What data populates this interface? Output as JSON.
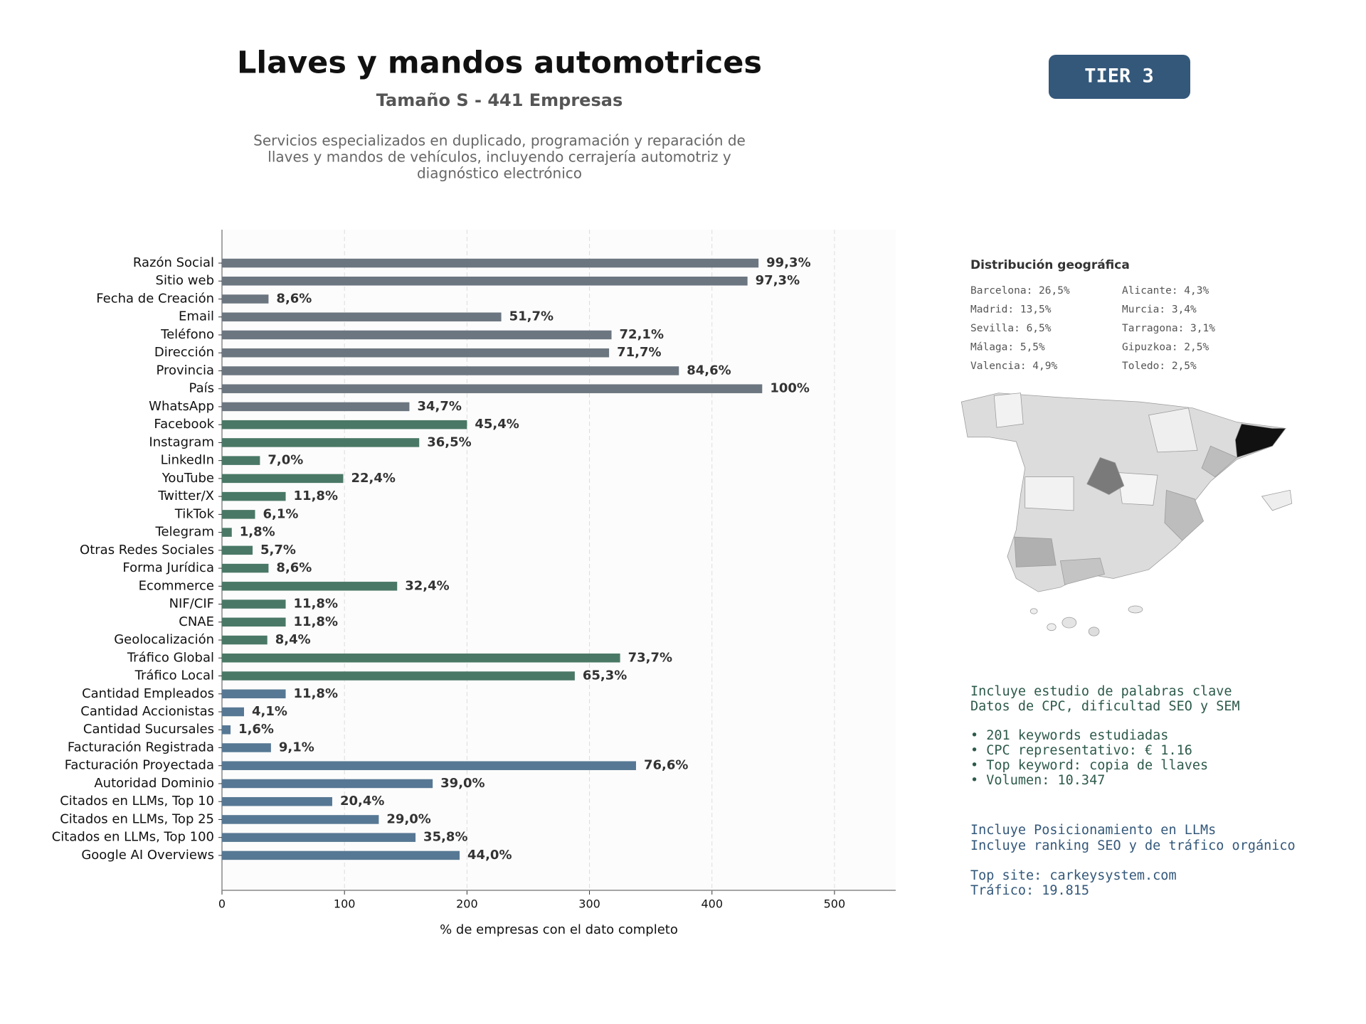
{
  "header": {
    "title": "Llaves y mandos automotrices",
    "subtitle": "Tamaño S - 441 Empresas",
    "description": [
      "Servicios especializados en duplicado, programación y reparación de",
      "llaves y mandos de vehículos, incluyendo cerrajería automotriz y",
      "diagnóstico electrónico"
    ]
  },
  "tier": "TIER 3",
  "geo": {
    "title": "Distribución geográfica",
    "left": [
      "Barcelona: 26,5%",
      "Madrid: 13,5%",
      "Sevilla: 6,5%",
      "Málaga: 5,5%",
      "Valencia: 4,9%"
    ],
    "right": [
      "Alicante: 4,3%",
      "Murcia: 3,4%",
      "Tarragona: 3,1%",
      "Gipuzkoa: 2,5%",
      "Toledo: 2,5%"
    ]
  },
  "keywords": [
    "Incluye estudio de palabras clave",
    "Datos de CPC, dificultad SEO y SEM",
    "• 201 keywords estudiadas",
    "• CPC representativo: € 1.16",
    "• Top keyword: copia de llaves",
    "• Volumen: 10.347"
  ],
  "llm": [
    "Incluye Posicionamiento en LLMs",
    "Incluye ranking SEO y de tráfico orgánico",
    "Top site: carkeysystem.com",
    "Tráfico: 19.815"
  ],
  "chart_data": {
    "type": "barh",
    "xlabel": "% de empresas con el dato completo",
    "categories": [
      "Razón Social",
      "Sitio web",
      "Fecha de Creación",
      "Email",
      "Teléfono",
      "Dirección",
      "Provincia",
      "País",
      "WhatsApp",
      "Facebook",
      "Instagram",
      "LinkedIn",
      "YouTube",
      "Twitter/X",
      "TikTok",
      "Telegram",
      "Otras Redes Sociales",
      "Forma Jurídica",
      "Ecommerce",
      "NIF/CIF",
      "CNAE",
      "Geolocalización",
      "Tráfico Global",
      "Tráfico Local",
      "Cantidad Empleados",
      "Cantidad Accionistas",
      "Cantidad Sucursales",
      "Facturación Registrada",
      "Facturación Proyectada",
      "Autoridad Dominio",
      "Citados en LLMs, Top 10",
      "Citados en LLMs, Top 25",
      "Citados en LLMs, Top 100",
      "Google AI Overviews"
    ],
    "values": [
      438,
      429,
      38,
      228,
      318,
      316,
      373,
      441,
      153,
      200,
      161,
      31,
      99,
      52,
      27,
      8,
      25,
      38,
      143,
      52,
      52,
      37,
      325,
      288,
      52,
      18,
      7,
      40,
      338,
      172,
      90,
      128,
      158,
      194
    ],
    "value_labels": [
      "99,3%",
      "97,3%",
      "8,6%",
      "51,7%",
      "72,1%",
      "71,7%",
      "84,6%",
      "100%",
      "34,7%",
      "45,4%",
      "36,5%",
      "7,0%",
      "22,4%",
      "11,8%",
      "6,1%",
      "1,8%",
      "5,7%",
      "8,6%",
      "32,4%",
      "11,8%",
      "11,8%",
      "8,4%",
      "73,7%",
      "65,3%",
      "11,8%",
      "4,1%",
      "1,6%",
      "9,1%",
      "76,6%",
      "39,0%",
      "20,4%",
      "29,0%",
      "35,8%",
      "44,0%"
    ],
    "colors": [
      "#6c7680",
      "#6c7680",
      "#6c7680",
      "#6c7680",
      "#6c7680",
      "#6c7680",
      "#6c7680",
      "#6c7680",
      "#6c7680",
      "#4a7866",
      "#4a7866",
      "#4a7866",
      "#4a7866",
      "#4a7866",
      "#4a7866",
      "#4a7866",
      "#4a7866",
      "#4a7866",
      "#4a7866",
      "#4a7866",
      "#4a7866",
      "#4a7866",
      "#4a7866",
      "#4a7866",
      "#577894",
      "#577894",
      "#577894",
      "#577894",
      "#577894",
      "#577894",
      "#577894",
      "#577894",
      "#577894",
      "#577894"
    ],
    "xlim": [
      0,
      550
    ],
    "xticks": [
      0,
      100,
      200,
      300,
      400,
      500
    ],
    "grid": true
  }
}
